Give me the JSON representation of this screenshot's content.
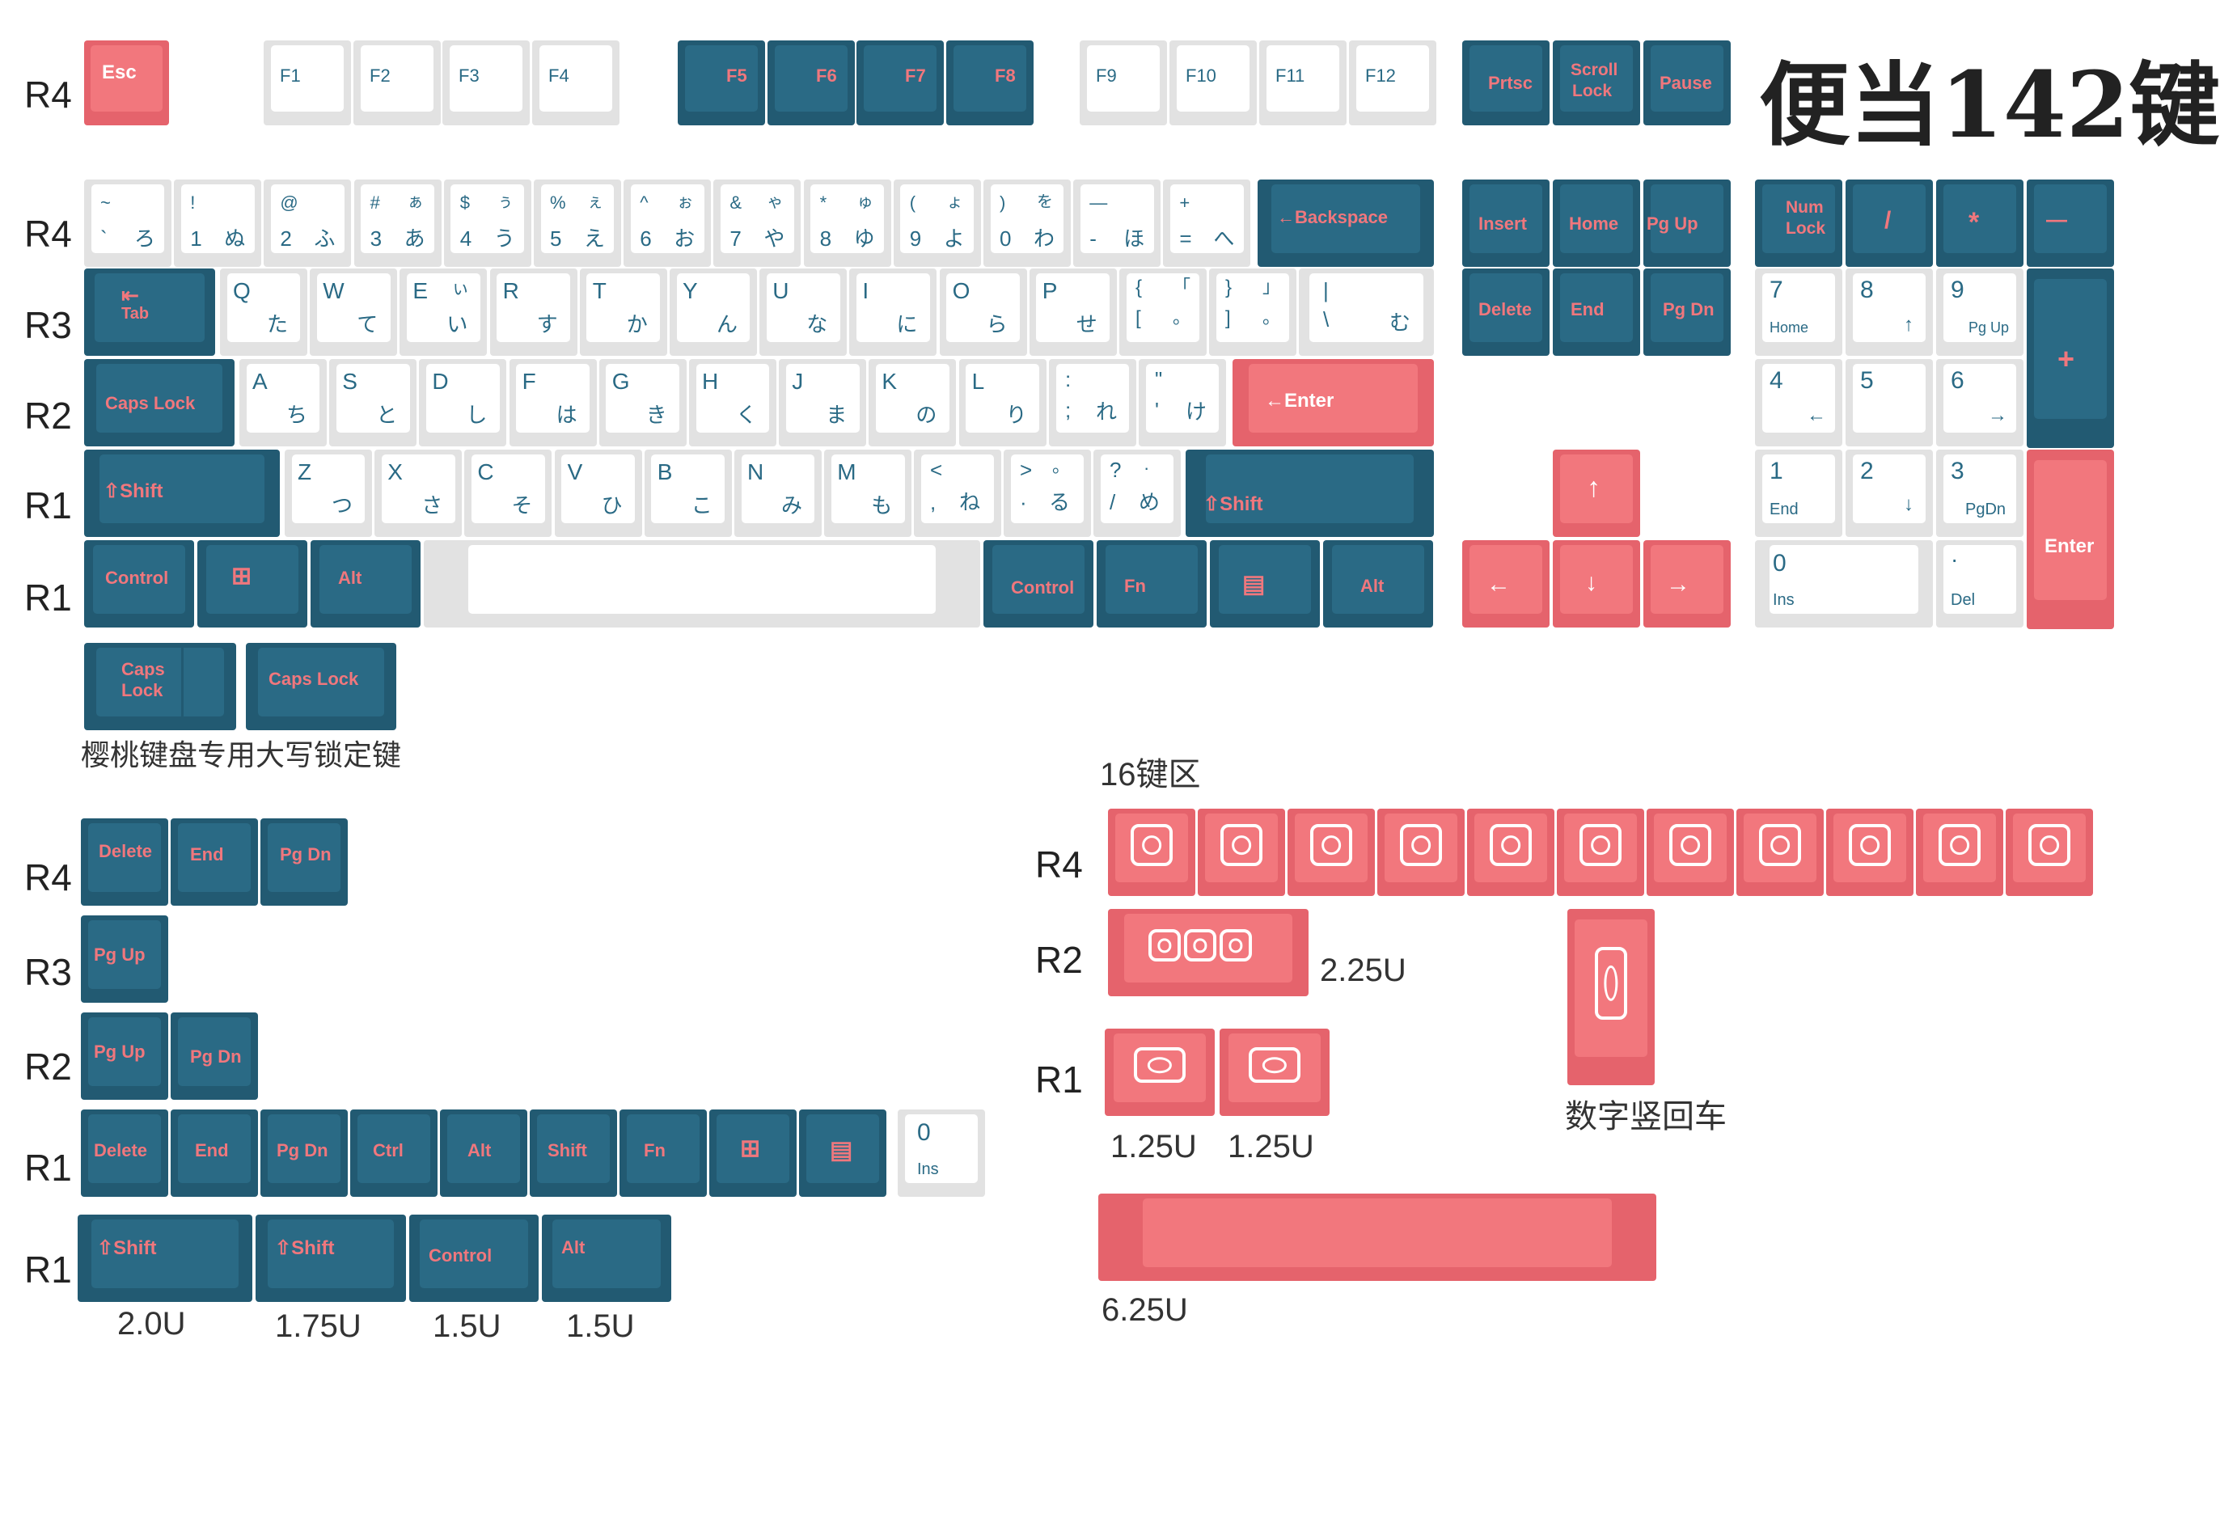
{
  "title": "便当142键",
  "row_labels": {
    "r4": "R4",
    "r3": "R3",
    "r2": "R2",
    "r1": "R1"
  },
  "notes": {
    "cherry_capslock": "樱桃键盘专用大写锁定键",
    "novelty_16": "16键区",
    "u225": "2.25U",
    "u125a": "1.25U",
    "u125b": "1.25U",
    "numpad_vertical_enter": "数字竖回车",
    "u625": "6.25U",
    "u20": "2.0U",
    "u175": "1.75U",
    "u15a": "1.5U",
    "u15b": "1.5U"
  },
  "colors": {
    "blue": "#225a72",
    "blue_cap": "#2a6a85",
    "white": "#ffffff",
    "pink": "#f2777d",
    "legend_pink": "#f0777d"
  },
  "keys": {
    "esc": "Esc",
    "f1": "F1",
    "f2": "F2",
    "f3": "F3",
    "f4": "F4",
    "f5": "F5",
    "f6": "F6",
    "f7": "F7",
    "f8": "F8",
    "f9": "F9",
    "f10": "F10",
    "f11": "F11",
    "f12": "F12",
    "prtsc": "Prtsc",
    "scroll1": "Scroll",
    "scroll2": "Lock",
    "pause": "Pause",
    "tilde_t": "~",
    "tilde_b": "`",
    "tilde_k": "ろ",
    "n1_t": "!",
    "n1_b": "1",
    "n1_k": "ぬ",
    "n2_t": "@",
    "n2_b": "2",
    "n2_k": "ふ",
    "n3_t": "#",
    "n3_b": "3",
    "n3_k": "あ",
    "n3_kt": "ぁ",
    "n4_t": "$",
    "n4_b": "4",
    "n4_k": "う",
    "n4_kt": "ぅ",
    "n5_t": "%",
    "n5_b": "5",
    "n5_k": "え",
    "n5_kt": "ぇ",
    "n6_t": "^",
    "n6_b": "6",
    "n6_k": "お",
    "n6_kt": "ぉ",
    "n7_t": "&",
    "n7_b": "7",
    "n7_k": "や",
    "n7_kt": "ゃ",
    "n8_t": "*",
    "n8_b": "8",
    "n8_k": "ゆ",
    "n8_kt": "ゅ",
    "n9_t": "(",
    "n9_b": "9",
    "n9_k": "よ",
    "n9_kt": "ょ",
    "n0_t": ")",
    "n0_b": "0",
    "n0_k": "わ",
    "n0_kt": "を",
    "minus_t": "—",
    "minus_b": "-",
    "minus_k": "ほ",
    "eq_t": "+",
    "eq_b": "=",
    "eq_k": "へ",
    "backspace": "←Backspace",
    "insert": "Insert",
    "home": "Home",
    "pgup": "Pg Up",
    "delete": "Delete",
    "end": "End",
    "pgdn": "Pg Dn",
    "numlock1": "Num",
    "numlock2": "Lock",
    "slash": "/",
    "star": "*",
    "nminus": "—",
    "plus": "+",
    "tab1": "⇤",
    "tab2": "Tab",
    "q": "Q",
    "q_k": "た",
    "w": "W",
    "w_k": "て",
    "e": "E",
    "e_k": "い",
    "e_kt": "ぃ",
    "r": "R",
    "r_k": "す",
    "t": "T",
    "t_k": "か",
    "y": "Y",
    "y_k": "ん",
    "u": "U",
    "u_k": "な",
    "i": "I",
    "i_k": "に",
    "o": "O",
    "o_k": "ら",
    "p": "P",
    "p_k": "せ",
    "lb_t": "{",
    "lb_b": "[",
    "lb_k1": "「",
    "lb_k2": "。",
    "rb_t": "}",
    "rb_b": "]",
    "rb_k1": "」",
    "rb_k2": "。",
    "bs_t": "|",
    "bs_b": "\\",
    "bs_k": "む",
    "n7": "7",
    "n7s": "Home",
    "n8": "8",
    "n8s": "↑",
    "n9": "9",
    "n9s": "Pg Up",
    "capslock": "Caps Lock",
    "a": "A",
    "a_k": "ち",
    "s": "S",
    "s_k": "と",
    "d": "D",
    "d_k": "し",
    "f": "F",
    "f_k": "は",
    "g": "G",
    "g_k": "き",
    "h": "H",
    "h_k": "く",
    "j": "J",
    "j_k": "ま",
    "k": "K",
    "k_k": "の",
    "l": "L",
    "l_k": "り",
    "semi_t": ":",
    "semi_b": ";",
    "semi_k": "れ",
    "quote_t": "\"",
    "quote_b": "'",
    "quote_k": "け",
    "enter": "←Enter",
    "n4": "4",
    "n4s": "←",
    "n5": "5",
    "n6": "6",
    "n6s": "→",
    "lshift": "⇧Shift",
    "z": "Z",
    "z_k": "つ",
    "x": "X",
    "x_k": "さ",
    "c": "C",
    "c_k": "そ",
    "v": "V",
    "v_k": "ひ",
    "b": "B",
    "b_k": "こ",
    "n": "N",
    "n_k": "み",
    "m": "M",
    "m_k": "も",
    "comma_t": "<",
    "comma_b": ",",
    "comma_k": "ね",
    "dot_t": ">",
    "dot_tk": "。",
    "dot_b": "·",
    "dot_k": "る",
    "sl_t": "?",
    "sl_tk": "·",
    "sl_b": "/",
    "sl_k": "め",
    "rshift": "⇧Shift",
    "up": "↑",
    "n1": "1",
    "n1s": "End",
    "n2": "2",
    "n2s": "↓",
    "n3": "3",
    "n3s": "PgDn",
    "nenter": "Enter",
    "control": "Control",
    "win": "⊞",
    "alt": "Alt",
    "fn": "Fn",
    "menu": "▤",
    "left": "←",
    "down": "↓",
    "right": "→",
    "n0": "0",
    "n0s": "Ins",
    "ndot": "·",
    "ndots": "Del",
    "caps_cherry1": "Caps",
    "caps_cherry2": "Lock",
    "caps_lock2": "Caps Lock",
    "ext_pgup": "Pg Up",
    "ext_pgdn": "Pg Dn",
    "ctrl": "Ctrl",
    "shift": "Shift"
  }
}
